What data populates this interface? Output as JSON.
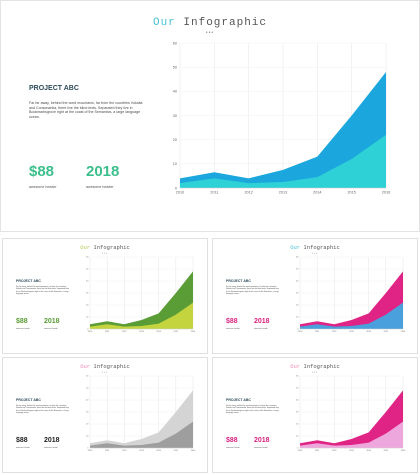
{
  "main": {
    "title_accent": "Our",
    "title_rest": " Infographic",
    "dots": "•••",
    "project_title": "PROJECT ABC",
    "body": "Far far away, behind the word mountains, far from the countries Vokalia and Consonantia, there live the blind texts. Separated they live in Bookmarksgrove right at the coast of the Semantics, a large language ocean.",
    "stat1_value": "$88",
    "stat1_caption": "awesome header",
    "stat2_value": "2018",
    "stat2_caption": "awesome header",
    "stat_color": "#3cbf8c",
    "chart_colors": [
      "#1ba7dd",
      "#2ed1d6"
    ]
  },
  "variants": [
    {
      "title_accent": "Our",
      "title_rest": " Infographic",
      "dots": "•••",
      "project_title": "PROJECT ABC",
      "body": "Far far away, behind the word mountains, far from the countries Vokalia and Consonantia, there live the blind texts. Separated they live in Bookmarksgrove right at the coast of the Semantics, a large language ocean.",
      "stat1_value": "$88",
      "stat1_caption": "awesome header",
      "stat2_value": "2018",
      "stat2_caption": "awesome header",
      "stat_color": "#5a9c35",
      "accent_color": "#b8c94e",
      "chart_colors": [
        "#5a9c35",
        "#c3d43e"
      ]
    },
    {
      "title_accent": "Our",
      "title_rest": " Infographic",
      "dots": "•••",
      "project_title": "PROJECT ABC",
      "body": "Far far away, behind the word mountains, far from the countries Vokalia and Consonantia, there live the blind texts. Separated they live in Bookmarksgrove right at the coast of the Semantics, a large language ocean.",
      "stat1_value": "$88",
      "stat1_caption": "awesome header",
      "stat2_value": "2018",
      "stat2_caption": "awesome header",
      "stat_color": "#d8237f",
      "accent_color": "#45c0d2",
      "chart_colors": [
        "#e02486",
        "#4aa0dc"
      ]
    },
    {
      "title_accent": "Our",
      "title_rest": " Infographic",
      "dots": "•••",
      "project_title": "PROJECT ABC",
      "body": "Far far away, behind the word mountains, far from the countries Vokalia and Consonantia, there live the blind texts. Separated they live in Bookmarksgrove right at the coast of the Semantics, a large language ocean.",
      "stat1_value": "$88",
      "stat1_caption": "awesome header",
      "stat2_value": "2018",
      "stat2_caption": "awesome header",
      "stat_color": "#222222",
      "accent_color": "#f08ab4",
      "chart_colors": [
        "#d4d4d4",
        "#9e9e9e"
      ]
    },
    {
      "title_accent": "Our",
      "title_rest": " Infographic",
      "dots": "•••",
      "project_title": "PROJECT ABC",
      "body": "Far far away, behind the word mountains, far from the countries Vokalia and Consonantia, there live the blind texts. Separated they live in Bookmarksgrove right at the coast of the Semantics, a large language ocean.",
      "stat1_value": "$88",
      "stat1_caption": "awesome header",
      "stat2_value": "2018",
      "stat2_caption": "awesome header",
      "stat_color": "#d8237f",
      "accent_color": "#f08ab4",
      "chart_colors": [
        "#e02486",
        "#eea7dc"
      ]
    }
  ],
  "chart_data": {
    "type": "area",
    "x": [
      "2010",
      "2011",
      "2012",
      "2013",
      "2014",
      "2015",
      "2016"
    ],
    "series": [
      {
        "values": [
          4,
          6.5,
          4,
          7.5,
          13,
          30,
          48
        ]
      },
      {
        "values": [
          2,
          4,
          2,
          2.5,
          4.5,
          12,
          22
        ]
      }
    ],
    "ylim": [
      0,
      60
    ],
    "yticks": [
      "0",
      "10",
      "20",
      "30",
      "40",
      "50",
      "60"
    ],
    "grid": true,
    "stacked": false
  }
}
